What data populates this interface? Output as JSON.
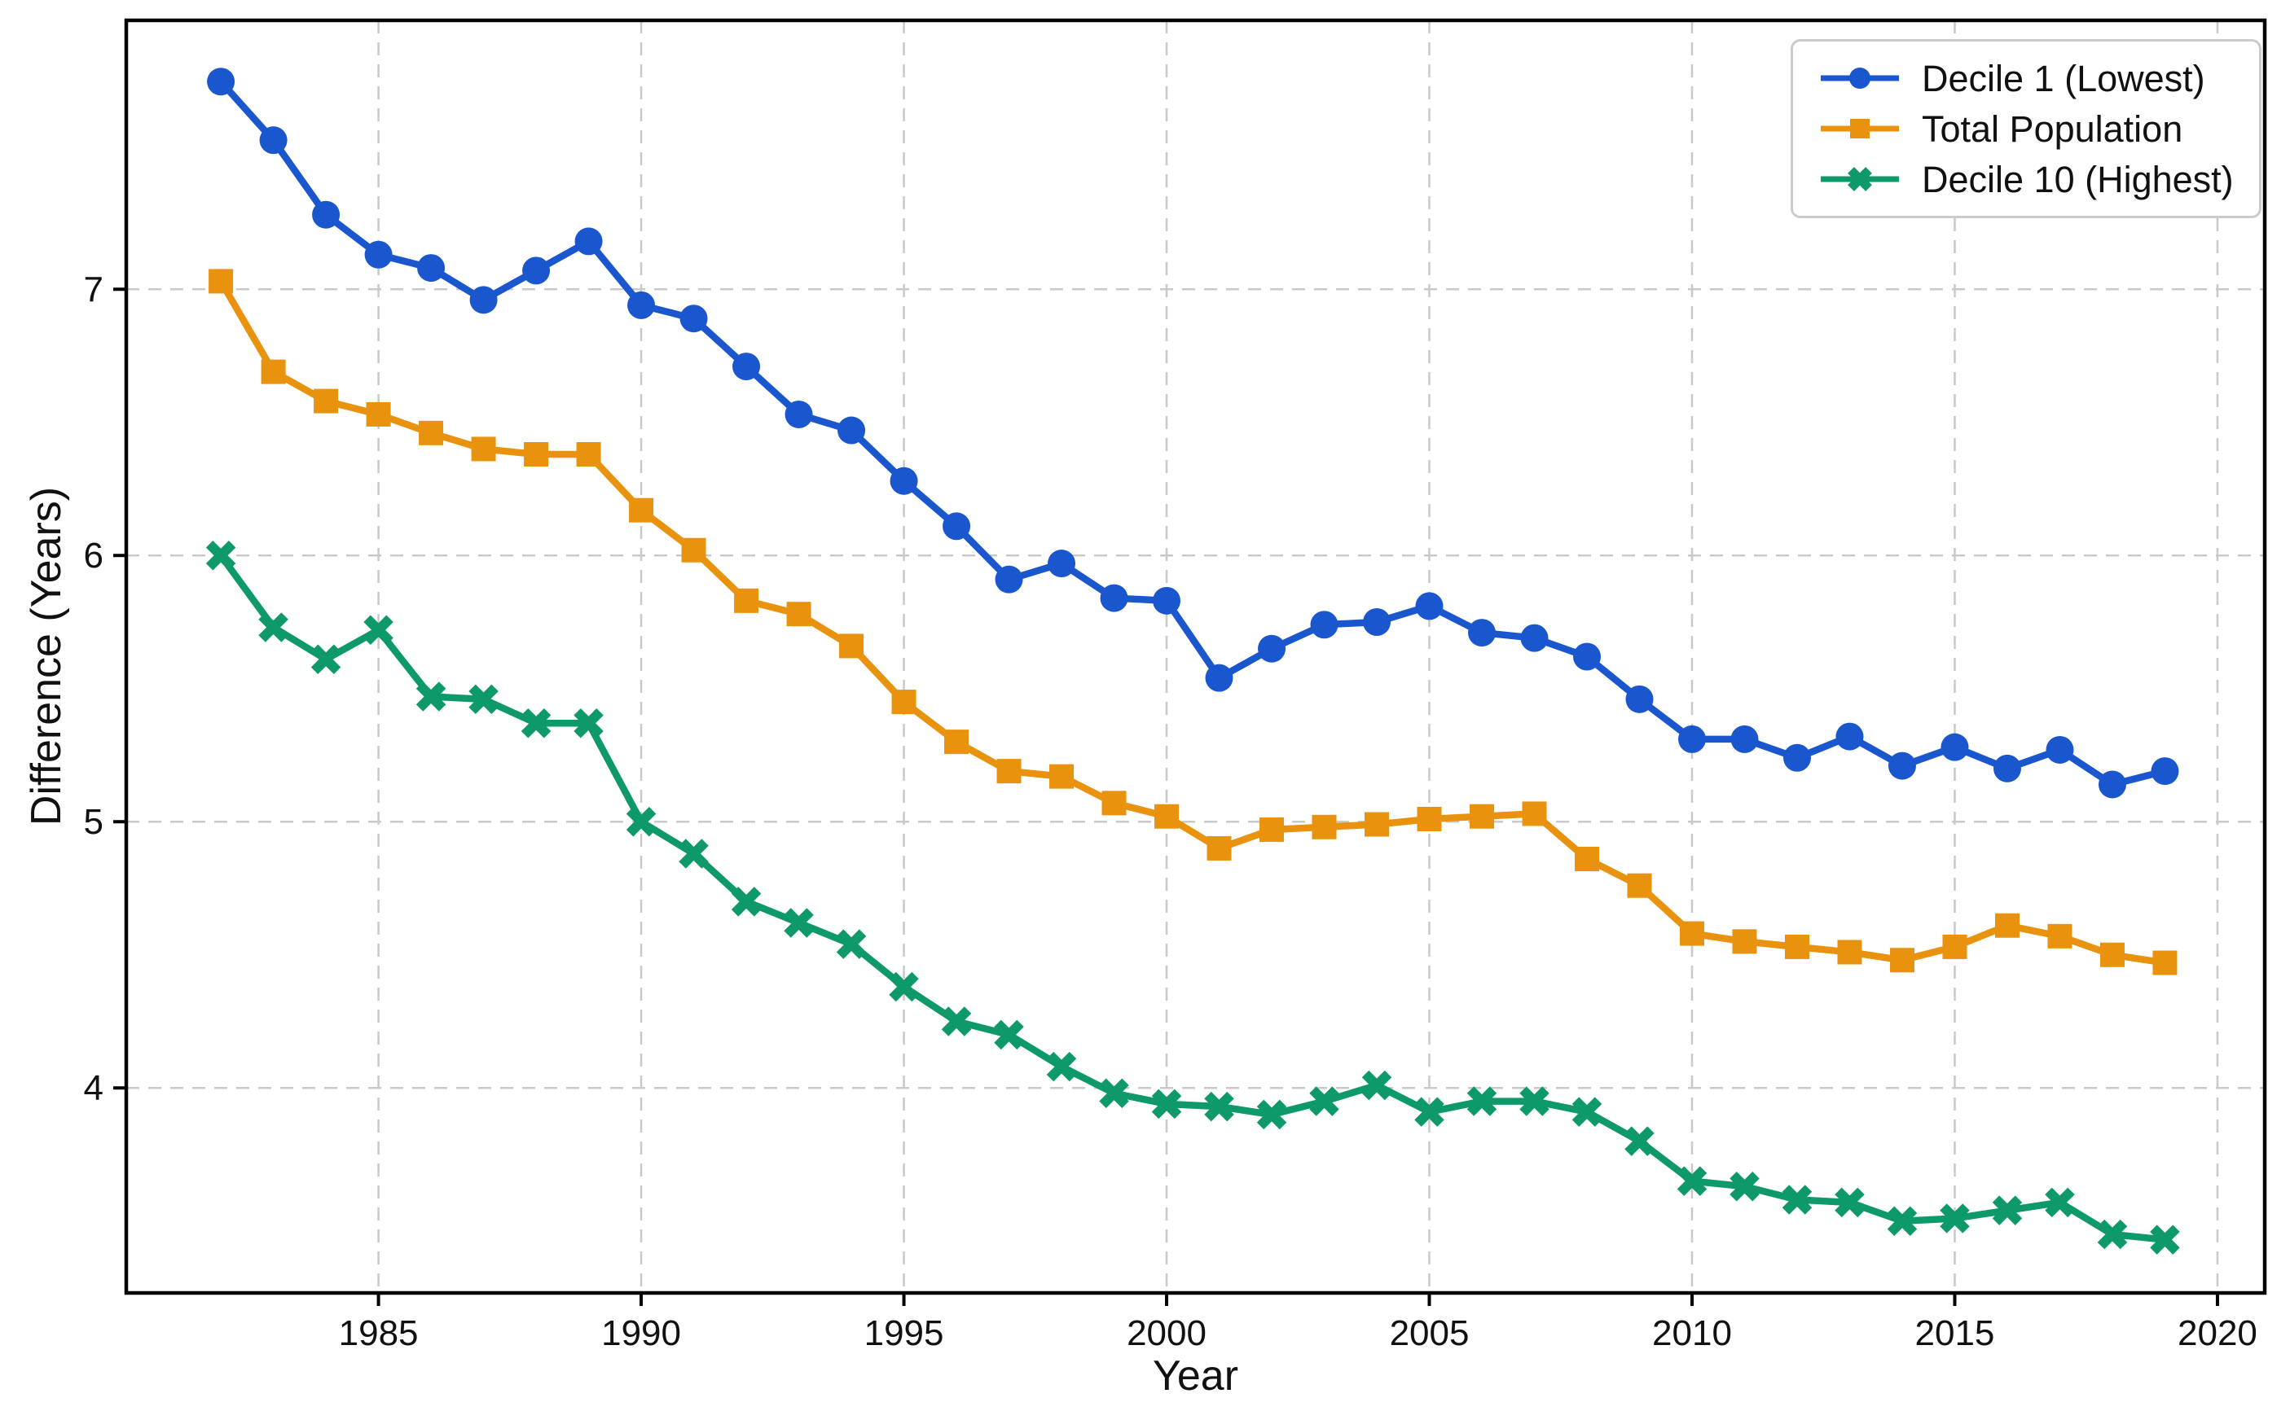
{
  "figure": {
    "background_color": "#ffffff",
    "plot_border_color": "#000000",
    "gridline_color": "#c9c9c9",
    "text_color": "#111111"
  },
  "chart_data": {
    "type": "line",
    "title": "",
    "xlabel": "Year",
    "ylabel": "Difference (Years)",
    "grid": true,
    "legend_position": "upper right",
    "x_ticks": [
      1985,
      1990,
      1995,
      2000,
      2005,
      2010,
      2015,
      2020
    ],
    "x_tick_labels": [
      "1985",
      "1990",
      "1995",
      "2000",
      "2005",
      "2010",
      "2015",
      "2020"
    ],
    "y_ticks": [
      4,
      5,
      6,
      7
    ],
    "y_tick_labels": [
      "4",
      "5",
      "6",
      "7"
    ],
    "xlim": [
      1980.2,
      2020.9
    ],
    "ylim": [
      3.23,
      8.01
    ],
    "x": [
      1982,
      1983,
      1984,
      1985,
      1986,
      1987,
      1988,
      1989,
      1990,
      1991,
      1992,
      1993,
      1994,
      1995,
      1996,
      1997,
      1998,
      1999,
      2000,
      2001,
      2002,
      2003,
      2004,
      2005,
      2006,
      2007,
      2008,
      2009,
      2010,
      2011,
      2012,
      2013,
      2014,
      2015,
      2016,
      2017,
      2018,
      2019
    ],
    "series": [
      {
        "name": "Decile 1 (Lowest)",
        "color": "#1a56cd",
        "marker": "circle",
        "values": [
          7.78,
          7.56,
          7.28,
          7.13,
          7.08,
          6.96,
          7.07,
          7.18,
          6.94,
          6.89,
          6.71,
          6.53,
          6.47,
          6.28,
          6.11,
          5.91,
          5.97,
          5.84,
          5.83,
          5.54,
          5.65,
          5.74,
          5.75,
          5.81,
          5.71,
          5.69,
          5.62,
          5.46,
          5.31,
          5.31,
          5.24,
          5.32,
          5.21,
          5.28,
          5.2,
          5.27,
          5.14,
          5.19
        ]
      },
      {
        "name": "Total Population",
        "color": "#e8920e",
        "marker": "square",
        "values": [
          7.03,
          6.69,
          6.58,
          6.53,
          6.46,
          6.4,
          6.38,
          6.38,
          6.17,
          6.02,
          5.83,
          5.78,
          5.66,
          5.45,
          5.3,
          5.19,
          5.17,
          5.07,
          5.02,
          4.9,
          4.97,
          4.98,
          4.99,
          5.01,
          5.02,
          5.03,
          4.86,
          4.76,
          4.58,
          4.55,
          4.53,
          4.51,
          4.48,
          4.53,
          4.61,
          4.57,
          4.5,
          4.47
        ]
      },
      {
        "name": "Decile 10 (Highest)",
        "color": "#0d9969",
        "marker": "x",
        "values": [
          6.0,
          5.73,
          5.61,
          5.72,
          5.47,
          5.46,
          5.37,
          5.37,
          5.0,
          4.88,
          4.7,
          4.62,
          4.54,
          4.38,
          4.25,
          4.2,
          4.08,
          3.98,
          3.94,
          3.93,
          3.9,
          3.95,
          4.01,
          3.91,
          3.95,
          3.95,
          3.91,
          3.8,
          3.65,
          3.63,
          3.58,
          3.57,
          3.5,
          3.51,
          3.54,
          3.57,
          3.45,
          3.43
        ]
      }
    ]
  }
}
